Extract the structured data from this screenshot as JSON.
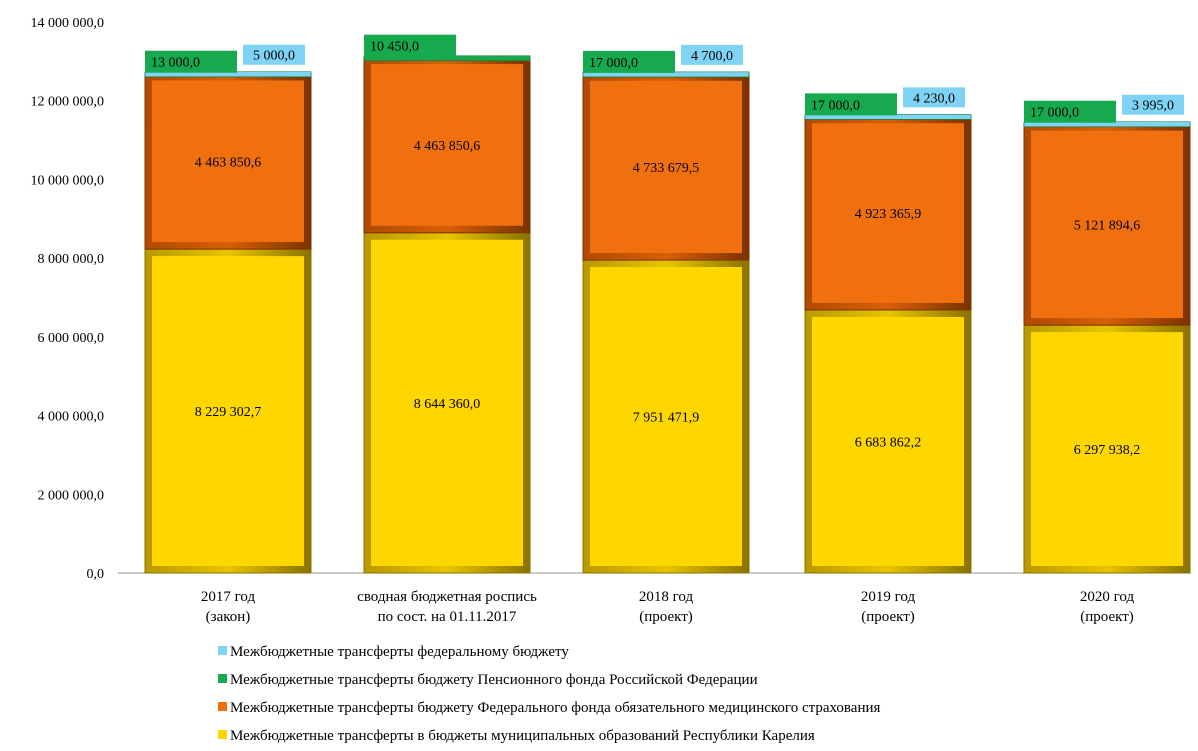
{
  "chart_data": {
    "type": "bar",
    "stacked": true,
    "categories": [
      [
        "2017 год",
        "(закон)"
      ],
      [
        "сводная бюджетная роспись",
        "по сост. на 01.11.2017"
      ],
      [
        "2018 год",
        "(проект)"
      ],
      [
        "2019 год",
        "(проект)"
      ],
      [
        "2020 год",
        "(проект)"
      ]
    ],
    "y_ticks": [
      "0,0",
      "2 000 000,0",
      "4 000 000,0",
      "6 000 000,0",
      "8 000 000,0",
      "10 000 000,0",
      "12 000 000,0",
      "14 000 000,0"
    ],
    "ylim": [
      0,
      14000000
    ],
    "grid": false,
    "legend_position": "bottom",
    "series": [
      {
        "name": "Межбюджетные трансферты в бюджеты муниципальных образований Республики Карелия",
        "color": "#FFD700",
        "values": [
          8229302.7,
          8644360.0,
          7951471.9,
          6683862.2,
          6297938.2
        ],
        "labels": [
          "8 229 302,7",
          "8 644 360,0",
          "7 951 471,9",
          "6 683 862,2",
          "6 297 938,2"
        ]
      },
      {
        "name": "Межбюджетные трансферты бюджету Федерального фонда обязательного медицинского страхования",
        "color": "#F07010",
        "values": [
          4463850.6,
          4463850.6,
          4733679.5,
          4923365.9,
          5121894.6
        ],
        "labels": [
          "4 463 850,6",
          "4 463 850,6",
          "4 733 679,5",
          "4 923 365,9",
          "5 121 894,6"
        ]
      },
      {
        "name": "Межбюджетные трансферты бюджету Пенсионного фонда Российской Федерации",
        "color": "#17A94E",
        "values": [
          13000.0,
          10450.0,
          17000.0,
          17000.0,
          17000.0
        ],
        "labels": [
          "13 000,0",
          "10 450,0",
          "17 000,0",
          "17 000,0",
          "17 000,0"
        ]
      },
      {
        "name": "Межбюджетные трансферты федеральному бюджету",
        "color": "#7FD3F5",
        "values": [
          5000.0,
          0,
          4700.0,
          4230.0,
          3995.0
        ],
        "labels": [
          "5 000,0",
          "",
          "4 700,0",
          "4 230,0",
          "3 995,0"
        ]
      }
    ],
    "legend_order": [
      3,
      2,
      1,
      0
    ]
  }
}
